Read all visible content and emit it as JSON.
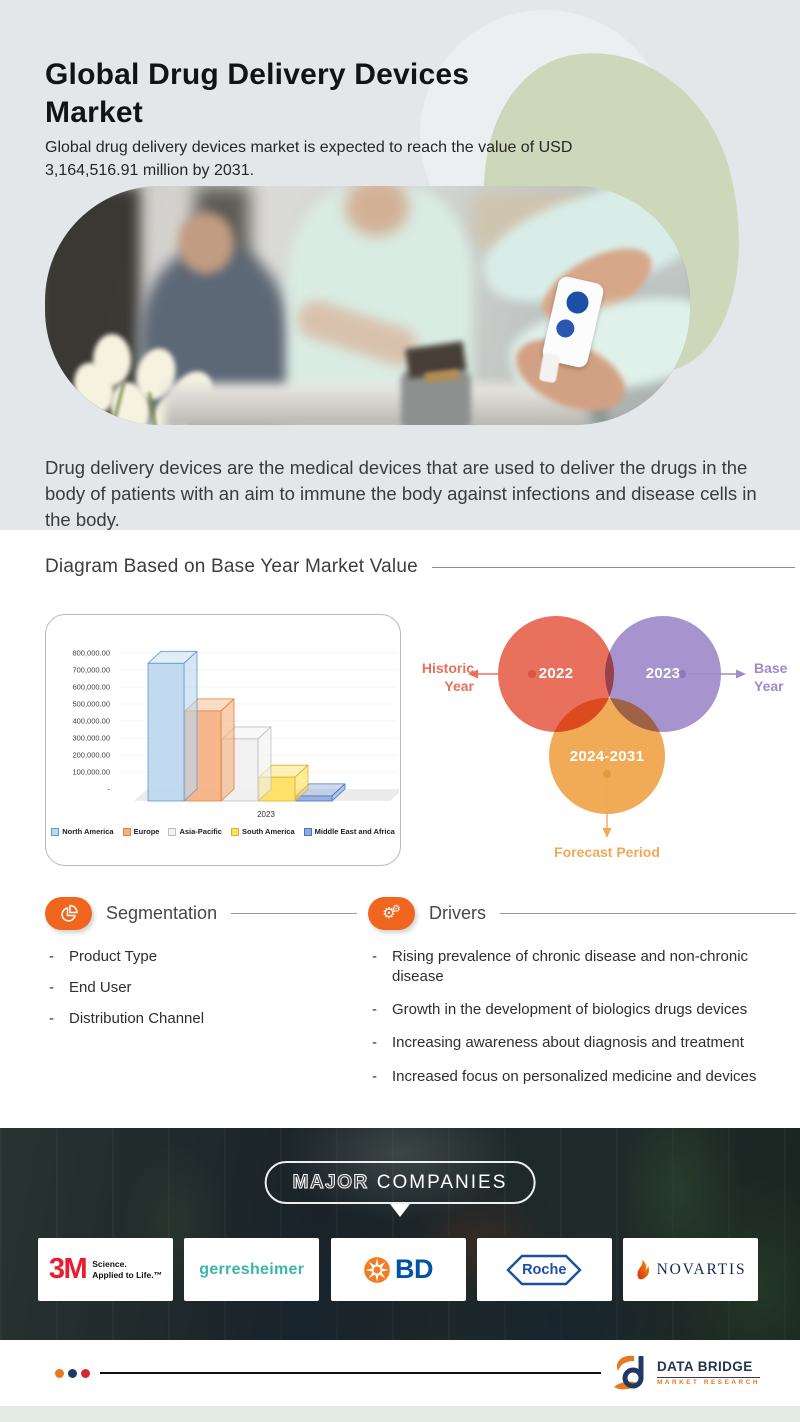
{
  "hero": {
    "title": "Global Drug Delivery Devices Market",
    "subtitle": "Global drug delivery devices market is expected to reach the value of USD 3,164,516.91 million by 2031.",
    "description": "Drug delivery devices are the medical devices that are used to deliver the drugs in the body of patients with an aim to immune the body against infections and disease cells in the body."
  },
  "diagram": {
    "heading": "Diagram Based on Base Year Market Value",
    "venn": {
      "historic": {
        "year": "2022",
        "label": "Historic Year",
        "color": "#E8705A"
      },
      "base": {
        "year": "2023",
        "label": "Base Year",
        "color": "#9E8BC8"
      },
      "forecast": {
        "year": "2024-2031",
        "label": "Forecast Period",
        "color": "#F0A85B"
      }
    }
  },
  "chart_data": {
    "type": "bar",
    "style": "3d",
    "categories": [
      "2023"
    ],
    "series": [
      {
        "name": "North America",
        "values": [
          810000
        ],
        "fill": "#BDD7EE",
        "stroke": "#5B9BD5"
      },
      {
        "name": "Europe",
        "values": [
          530000
        ],
        "fill": "#F5B183",
        "stroke": "#ED7D31"
      },
      {
        "name": "Asia-Pacific",
        "values": [
          365000
        ],
        "fill": "#F0F0F0",
        "stroke": "#BFBFBF"
      },
      {
        "name": "South America",
        "values": [
          140000
        ],
        "fill": "#FFE05A",
        "stroke": "#D9B42E"
      },
      {
        "name": "Middle East and Africa",
        "values": [
          30000
        ],
        "fill": "#8FAADC",
        "stroke": "#4472C4"
      }
    ],
    "y_ticks": [
      "800,000.00",
      "700,000.00",
      "600,000.00",
      "500,000.00",
      "400,000.00",
      "300,000.00",
      "200,000.00",
      "100,000.00",
      "-"
    ],
    "y_tick_step": 100000,
    "ylim": [
      0,
      850000
    ],
    "xlabel": "",
    "ylabel": "",
    "grid": false,
    "legend_position": "bottom"
  },
  "segmentation": {
    "heading": "Segmentation",
    "items": [
      "Product Type",
      "End User",
      "Distribution Channel"
    ]
  },
  "drivers": {
    "heading": "Drivers",
    "items": [
      "Rising prevalence of chronic disease and non-chronic disease",
      "Growth in the development of biologics drugs devices",
      "Increasing awareness about diagnosis and treatment",
      "Increased focus on personalized medicine and devices"
    ]
  },
  "companies": {
    "banner": {
      "word1": "MAJOR",
      "word2": "COMPANIES"
    },
    "logos": [
      {
        "name": "3M",
        "tagline_line1": "Science.",
        "tagline_line2": "Applied to Life.™"
      },
      {
        "name": "gerresheimer"
      },
      {
        "name": "BD"
      },
      {
        "name": "Roche"
      },
      {
        "name": "NOVARTIS"
      }
    ]
  },
  "footer": {
    "brand": "DATA BRIDGE",
    "brand_sub": "MARKET RESEARCH"
  },
  "colors": {
    "accent_orange": "#F1661F",
    "hero_bg": "#E3E7EA",
    "sage_blob": "#CDD7BA",
    "bottom_strip": "#E4EAE4"
  }
}
